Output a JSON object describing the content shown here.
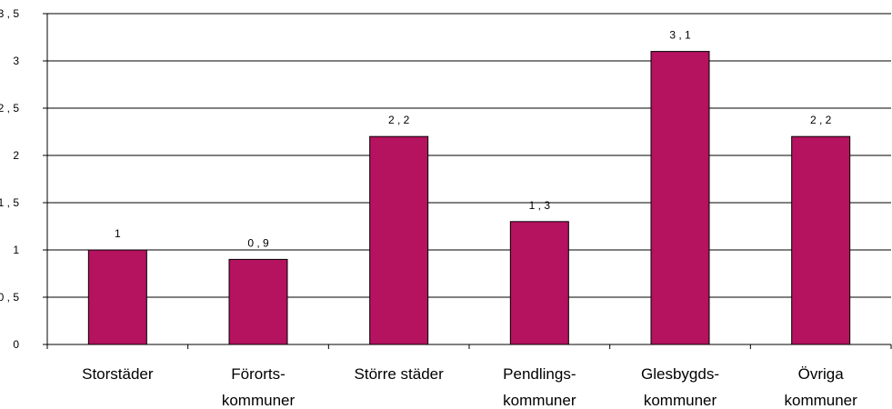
{
  "chart_data": {
    "type": "bar",
    "categories": [
      [
        "Storstäder"
      ],
      [
        "Förorts-",
        "kommuner"
      ],
      [
        "Större städer"
      ],
      [
        "Pendlings-",
        "kommuner"
      ],
      [
        "Glesbygds-",
        "kommuner"
      ],
      [
        "Övriga",
        "kommuner"
      ]
    ],
    "values": [
      1,
      0.9,
      2.2,
      1.3,
      3.1,
      2.2
    ],
    "value_labels": [
      "1",
      "0,9",
      "2,2",
      "1,3",
      "3,1",
      "2,2"
    ],
    "y_ticks": [
      0,
      0.5,
      1,
      1.5,
      2,
      2.5,
      3,
      3.5
    ],
    "y_tick_labels": [
      "0",
      "0,5",
      "1",
      "1,5",
      "2",
      "2,5",
      "3",
      "3,5"
    ],
    "ylim": [
      0,
      3.5
    ],
    "grid": true,
    "bar_color": "#b5125f",
    "title": "",
    "xlabel": "",
    "ylabel": ""
  }
}
